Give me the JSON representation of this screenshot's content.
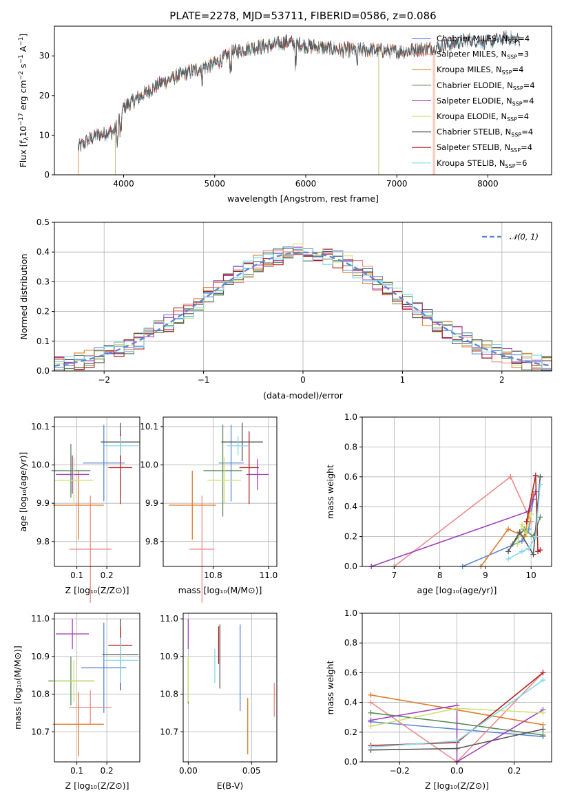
{
  "colors": {
    "Chabrier MILES": "#5b88d6",
    "Salpeter MILES": "#ed8a8a",
    "Kroupa MILES": "#e07a2a",
    "Chabrier ELODIE": "#5a8c5a",
    "Salpeter ELODIE": "#a040c0",
    "Kroupa ELODIE": "#cfe070",
    "Chabrier STELIB": "#555555",
    "Salpeter STELIB": "#b22222",
    "Kroupa STELIB": "#80d8e8"
  },
  "chart_data": [
    {
      "id": "spectrum",
      "type": "line",
      "title": "PLATE=2278, MJD=53711, FIBERID=0586, z=0.086",
      "xlabel": "wavelength [Angstrom, rest frame]",
      "ylabel": "Flux [fλ10⁻¹⁷ erg cm⁻² s⁻¹ A⁻¹]",
      "xlim": [
        3240,
        8700
      ],
      "ylim": [
        0,
        37.5
      ],
      "xticks": [
        "4000",
        "5000",
        "6000",
        "7000",
        "8000"
      ],
      "yticks": [
        "0",
        "10",
        "20",
        "30"
      ],
      "legend_position": "top-right",
      "legend": [
        {
          "model": "Chabrier MILES",
          "nssp": "4"
        },
        {
          "model": "Salpeter MILES",
          "nssp": "3"
        },
        {
          "model": "Kroupa MILES",
          "nssp": "4"
        },
        {
          "model": "Chabrier ELODIE",
          "nssp": "4"
        },
        {
          "model": "Salpeter ELODIE",
          "nssp": "4"
        },
        {
          "model": "Kroupa ELODIE",
          "nssp": "4"
        },
        {
          "model": "Chabrier STELIB",
          "nssp": "4"
        },
        {
          "model": "Salpeter STELIB",
          "nssp": "4"
        },
        {
          "model": "Kroupa STELIB",
          "nssp": "6"
        }
      ],
      "continuum": [
        [
          3500,
          7
        ],
        [
          3700,
          10
        ],
        [
          3900,
          11
        ],
        [
          4000,
          17
        ],
        [
          4200,
          20
        ],
        [
          4400,
          23
        ],
        [
          4600,
          25
        ],
        [
          4800,
          26.5
        ],
        [
          5000,
          28
        ],
        [
          5200,
          31
        ],
        [
          5400,
          32
        ],
        [
          5600,
          32.5
        ],
        [
          5800,
          33.5
        ],
        [
          6000,
          32.5
        ],
        [
          6200,
          32
        ],
        [
          6400,
          31.5
        ],
        [
          6600,
          31.5
        ],
        [
          6800,
          31.5
        ],
        [
          7000,
          31
        ],
        [
          7200,
          31.5
        ],
        [
          7400,
          32
        ],
        [
          7600,
          33
        ],
        [
          7800,
          34
        ],
        [
          8000,
          33.5
        ],
        [
          8200,
          34.5
        ],
        [
          8350,
          34
        ]
      ],
      "series_ranges": {
        "Chabrier MILES": [
          3500,
          8350
        ],
        "Salpeter MILES": [
          3500,
          7400
        ],
        "Kroupa MILES": [
          3500,
          7420
        ],
        "Chabrier ELODIE": [
          3500,
          6800
        ],
        "Salpeter ELODIE": [
          3500,
          6800
        ],
        "Kroupa ELODIE": [
          3500,
          6800
        ],
        "Chabrier STELIB": [
          3500,
          8350
        ],
        "Salpeter STELIB": [
          3500,
          8350
        ],
        "Kroupa STELIB": [
          3500,
          8350
        ]
      }
    },
    {
      "id": "residual-hist",
      "type": "line",
      "xlabel": "(data-model)/error",
      "ylabel": "Normed distribution",
      "xlim": [
        -2.5,
        2.5
      ],
      "ylim": [
        0,
        0.5
      ],
      "xticks": [
        "−2",
        "−1",
        "0",
        "1",
        "2"
      ],
      "yticks": [
        "0.0",
        "0.1",
        "0.2",
        "0.3",
        "0.4",
        "0.5"
      ],
      "legend_position": "top-right",
      "reference_curve": {
        "label": "𝒩(0, 1)",
        "mean": 0,
        "sigma": 1,
        "style": "dashed"
      },
      "bin_width": 0.1
    },
    {
      "id": "age-vs-Z",
      "type": "scatter",
      "xlabel": "Z [log₁₀(Z/Z⊙)]",
      "ylabel": "age  [log₁₀(age/yr)]",
      "xlim": [
        0.025,
        0.31
      ],
      "ylim": [
        9.735,
        10.125
      ],
      "xticks": [
        {
          "v": 0.1,
          "t": "0.1"
        },
        {
          "v": 0.2,
          "t": "0.2"
        }
      ],
      "yticks": [
        {
          "v": 9.8,
          "t": "9.8"
        },
        {
          "v": 9.9,
          "t": "9.9"
        },
        {
          "v": 10.0,
          "t": "10.0"
        },
        {
          "v": 10.1,
          "t": "10.1"
        }
      ],
      "points": [
        {
          "model": "Chabrier MILES",
          "x": 0.19,
          "y": 10.005,
          "xerr": 0.07,
          "yerr": 0.1
        },
        {
          "model": "Salpeter MILES",
          "x": 0.145,
          "y": 9.78,
          "xerr": 0.07,
          "yerr": 0.14
        },
        {
          "model": "Kroupa MILES",
          "x": 0.105,
          "y": 9.895,
          "xerr": 0.085,
          "yerr": 0.09
        },
        {
          "model": "Chabrier ELODIE",
          "x": 0.08,
          "y": 9.985,
          "xerr": 0.065,
          "yerr": 0.07
        },
        {
          "model": "Salpeter ELODIE",
          "x": 0.085,
          "y": 9.975,
          "xerr": 0.055,
          "yerr": 0.05
        },
        {
          "model": "Kroupa ELODIE",
          "x": 0.09,
          "y": 9.96,
          "xerr": 0.065,
          "yerr": 0.06
        },
        {
          "model": "Chabrier STELIB",
          "x": 0.245,
          "y": 10.06,
          "xerr": 0.065,
          "yerr": 0.05
        },
        {
          "model": "Salpeter STELIB",
          "x": 0.245,
          "y": 9.993,
          "xerr": 0.04,
          "yerr": 0.095
        },
        {
          "model": "Kroupa STELIB",
          "x": 0.245,
          "y": 10.05,
          "xerr": 0.06,
          "yerr": 0.025
        }
      ]
    },
    {
      "id": "age-vs-mass",
      "type": "scatter",
      "xlabel": "mass [log₁₀(M/M⊙)]",
      "ylabel": "",
      "xlim": [
        10.62,
        11.03
      ],
      "ylim": [
        9.735,
        10.125
      ],
      "xticks": [
        {
          "v": 10.8,
          "t": "10.8"
        },
        {
          "v": 11.0,
          "t": "11.0"
        }
      ],
      "yticks": [
        {
          "v": 9.8,
          "t": "9.8"
        },
        {
          "v": 9.9,
          "t": "9.9"
        },
        {
          "v": 10.0,
          "t": "10.0"
        },
        {
          "v": 10.1,
          "t": "10.1"
        }
      ],
      "points": [
        {
          "model": "Chabrier MILES",
          "x": 10.865,
          "y": 10.005,
          "xerr": 0.045,
          "yerr": 0.1
        },
        {
          "model": "Salpeter MILES",
          "x": 10.76,
          "y": 9.78,
          "xerr": 0.045,
          "yerr": 0.14
        },
        {
          "model": "Kroupa MILES",
          "x": 10.725,
          "y": 9.895,
          "xerr": 0.085,
          "yerr": 0.09
        },
        {
          "model": "Chabrier ELODIE",
          "x": 10.835,
          "y": 9.985,
          "xerr": 0.07,
          "yerr": 0.12
        },
        {
          "model": "Salpeter ELODIE",
          "x": 10.96,
          "y": 9.975,
          "xerr": 0.04,
          "yerr": 0.04
        },
        {
          "model": "Kroupa ELODIE",
          "x": 10.84,
          "y": 9.96,
          "xerr": 0.06,
          "yerr": 0.06
        },
        {
          "model": "Chabrier STELIB",
          "x": 10.905,
          "y": 10.06,
          "xerr": 0.075,
          "yerr": 0.05
        },
        {
          "model": "Salpeter STELIB",
          "x": 10.93,
          "y": 9.993,
          "xerr": 0.035,
          "yerr": 0.095
        },
        {
          "model": "Kroupa STELIB",
          "x": 10.89,
          "y": 10.05,
          "xerr": 0.04,
          "yerr": 0.025
        }
      ]
    },
    {
      "id": "weight-vs-age",
      "type": "line",
      "xlabel": "age  [log₁₀(age/yr)]",
      "ylabel": "mass weight",
      "xlim": [
        6.3,
        10.45
      ],
      "ylim": [
        0,
        1.0
      ],
      "xticks": [
        {
          "v": 7,
          "t": "7"
        },
        {
          "v": 8,
          "t": "8"
        },
        {
          "v": 9,
          "t": "9"
        },
        {
          "v": 10,
          "t": "10"
        }
      ],
      "yticks": [
        {
          "v": 0,
          "t": "0.0"
        },
        {
          "v": 0.2,
          "t": "0.2"
        },
        {
          "v": 0.4,
          "t": "0.4"
        },
        {
          "v": 0.6,
          "t": "0.6"
        },
        {
          "v": 0.8,
          "t": "0.8"
        },
        {
          "v": 1.0,
          "t": "1.0"
        }
      ],
      "series": [
        {
          "model": "Chabrier MILES",
          "x": [
            8.5,
            9.8,
            9.95,
            10.05
          ],
          "y": [
            0,
            0.17,
            0.25,
            0.45
          ]
        },
        {
          "model": "Salpeter MILES",
          "x": [
            7.0,
            9.55,
            10.0
          ],
          "y": [
            0,
            0.6,
            0.3
          ]
        },
        {
          "model": "Kroupa MILES",
          "x": [
            8.9,
            9.5,
            9.85,
            10.05
          ],
          "y": [
            0,
            0.25,
            0.2,
            0.48
          ]
        },
        {
          "model": "Chabrier ELODIE",
          "x": [
            9.6,
            9.85,
            10.05,
            10.2
          ],
          "y": [
            0.15,
            0.25,
            0.2,
            0.33
          ]
        },
        {
          "model": "Salpeter ELODIE",
          "x": [
            6.5,
            9.95,
            10.1
          ],
          "y": [
            0,
            0.37,
            0.5
          ]
        },
        {
          "model": "Kroupa ELODIE",
          "x": [
            9.7,
            9.8,
            9.9,
            10.0
          ],
          "y": [
            0.15,
            0.28,
            0.22,
            0.35
          ]
        },
        {
          "model": "Chabrier STELIB",
          "x": [
            9.5,
            9.75,
            10.05,
            10.2
          ],
          "y": [
            0.1,
            0.23,
            0.08,
            0.6
          ]
        },
        {
          "model": "Salpeter STELIB",
          "x": [
            9.9,
            10.1,
            10.15,
            10.2
          ],
          "y": [
            0.3,
            0.61,
            0.1,
            0.11
          ]
        },
        {
          "model": "Kroupa STELIB",
          "x": [
            9.5,
            9.8,
            9.95,
            10.1,
            10.2
          ],
          "y": [
            0.05,
            0.1,
            0.12,
            0.2,
            0.55
          ]
        }
      ]
    },
    {
      "id": "mass-vs-Z",
      "type": "scatter",
      "xlabel": "Z [log₁₀(Z/Z⊙)]",
      "ylabel": "mass [log₁₀(M/M⊙)]",
      "xlim": [
        0.025,
        0.31
      ],
      "ylim": [
        10.62,
        11.015
      ],
      "xticks": [
        {
          "v": 0.1,
          "t": "0.1"
        },
        {
          "v": 0.2,
          "t": "0.2"
        }
      ],
      "yticks": [
        {
          "v": 10.7,
          "t": "10.7"
        },
        {
          "v": 10.8,
          "t": "10.8"
        },
        {
          "v": 10.9,
          "t": "10.9"
        },
        {
          "v": 11.0,
          "t": "11.0"
        }
      ],
      "points": [
        {
          "model": "Chabrier MILES",
          "x": 0.19,
          "y": 10.87,
          "xerr": 0.075,
          "yerr": 0.12
        },
        {
          "model": "Salpeter MILES",
          "x": 0.145,
          "y": 10.765,
          "xerr": 0.07,
          "yerr": 0.045
        },
        {
          "model": "Kroupa MILES",
          "x": 0.105,
          "y": 10.72,
          "xerr": 0.085,
          "yerr": 0.085
        },
        {
          "model": "Chabrier ELODIE",
          "x": 0.08,
          "y": 10.835,
          "xerr": 0.075,
          "yerr": 0.065
        },
        {
          "model": "Salpeter ELODIE",
          "x": 0.085,
          "y": 10.96,
          "xerr": 0.055,
          "yerr": 0.04
        },
        {
          "model": "Kroupa ELODIE",
          "x": 0.09,
          "y": 10.835,
          "xerr": 0.07,
          "yerr": 0.055
        },
        {
          "model": "Chabrier STELIB",
          "x": 0.245,
          "y": 10.905,
          "xerr": 0.06,
          "yerr": 0.095
        },
        {
          "model": "Salpeter STELIB",
          "x": 0.245,
          "y": 10.93,
          "xerr": 0.04,
          "yerr": 0.05
        },
        {
          "model": "Kroupa STELIB",
          "x": 0.245,
          "y": 10.89,
          "xerr": 0.06,
          "yerr": 0.06
        }
      ]
    },
    {
      "id": "mass-vs-EBV",
      "type": "scatter",
      "xlabel": "E(B-V)",
      "ylabel": "",
      "xlim": [
        -0.004,
        0.07
      ],
      "ylim": [
        10.62,
        11.015
      ],
      "xticks": [
        {
          "v": 0.0,
          "t": "0.00"
        },
        {
          "v": 0.05,
          "t": "0.05"
        }
      ],
      "yticks": [
        {
          "v": 10.7,
          "t": "10.7"
        },
        {
          "v": 10.8,
          "t": "10.8"
        },
        {
          "v": 10.9,
          "t": "10.9"
        },
        {
          "v": 11.0,
          "t": "11.0"
        }
      ],
      "points": [
        {
          "model": "Chabrier MILES",
          "x": 0.041,
          "y": 10.87,
          "xerr": 0,
          "yerr": 0.115
        },
        {
          "model": "Salpeter MILES",
          "x": 0.068,
          "y": 10.785,
          "xerr": 0,
          "yerr": 0.045
        },
        {
          "model": "Kroupa MILES",
          "x": 0.047,
          "y": 10.715,
          "xerr": 0,
          "yerr": 0.075
        },
        {
          "model": "Chabrier ELODIE",
          "x": 0.0,
          "y": 10.835,
          "xerr": 0,
          "yerr": 0.06
        },
        {
          "model": "Salpeter ELODIE",
          "x": 0.0,
          "y": 10.96,
          "xerr": 0,
          "yerr": 0.04
        },
        {
          "model": "Kroupa ELODIE",
          "x": 0.0,
          "y": 10.84,
          "xerr": 0,
          "yerr": 0.06
        },
        {
          "model": "Chabrier STELIB",
          "x": 0.025,
          "y": 10.9,
          "xerr": 0,
          "yerr": 0.085
        },
        {
          "model": "Salpeter STELIB",
          "x": 0.024,
          "y": 10.93,
          "xerr": 0,
          "yerr": 0.05
        },
        {
          "model": "Kroupa STELIB",
          "x": 0.021,
          "y": 10.875,
          "xerr": 0,
          "yerr": 0.045
        }
      ]
    },
    {
      "id": "weight-vs-Z",
      "type": "line",
      "xlabel": "Z [log₁₀(Z/Z⊙)]",
      "ylabel": "mass weight",
      "xlim": [
        -0.33,
        0.33
      ],
      "ylim": [
        0,
        1.0
      ],
      "xticks": [
        {
          "v": -0.2,
          "t": "−0.2"
        },
        {
          "v": 0.0,
          "t": "0.0"
        },
        {
          "v": 0.2,
          "t": "0.2"
        }
      ],
      "yticks": [
        {
          "v": 0,
          "t": "0.0"
        },
        {
          "v": 0.2,
          "t": "0.2"
        },
        {
          "v": 0.4,
          "t": "0.4"
        },
        {
          "v": 0.6,
          "t": "0.6"
        },
        {
          "v": 0.8,
          "t": "0.8"
        },
        {
          "v": 1.0,
          "t": "1.0"
        }
      ],
      "series": [
        {
          "model": "Chabrier MILES",
          "x": [
            -0.3,
            0.0,
            0.3
          ],
          "y": [
            0.27,
            0.22,
            0.17
          ]
        },
        {
          "model": "Salpeter MILES",
          "x": [
            -0.3,
            0.0,
            0.3
          ],
          "y": [
            0.4,
            0.0,
            0.6
          ]
        },
        {
          "model": "Kroupa MILES",
          "x": [
            -0.3,
            0.0,
            0.3
          ],
          "y": [
            0.45,
            0.35,
            0.25
          ]
        },
        {
          "model": "Chabrier ELODIE",
          "x": [
            -0.3,
            0.0,
            0.3
          ],
          "y": [
            0.33,
            0.26,
            0.18
          ]
        },
        {
          "model": "Salpeter ELODIE",
          "x": [
            -0.3,
            0.0,
            0.0,
            0.3
          ],
          "y": [
            0.28,
            0.38,
            0.0,
            0.35
          ]
        },
        {
          "model": "Kroupa ELODIE",
          "x": [
            -0.3,
            0.0,
            0.3
          ],
          "y": [
            0.24,
            0.36,
            0.33
          ]
        },
        {
          "model": "Chabrier STELIB",
          "x": [
            -0.3,
            0.0,
            0.3
          ],
          "y": [
            0.08,
            0.09,
            0.22
          ]
        },
        {
          "model": "Salpeter STELIB",
          "x": [
            -0.3,
            0.0,
            0.3
          ],
          "y": [
            0.11,
            0.13,
            0.6
          ]
        },
        {
          "model": "Kroupa STELIB",
          "x": [
            -0.3,
            0.0,
            0.3
          ],
          "y": [
            0.1,
            0.14,
            0.55
          ]
        }
      ]
    }
  ]
}
